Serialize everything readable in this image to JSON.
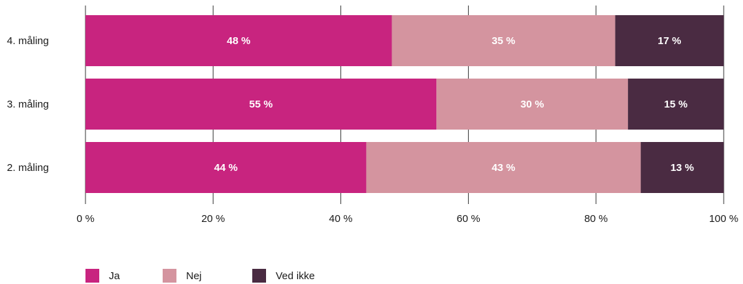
{
  "chart_data": {
    "type": "bar",
    "orientation": "horizontal",
    "stacked": true,
    "categories": [
      "4. måling",
      "3. måling",
      "2. måling"
    ],
    "series": [
      {
        "name": "Ja",
        "color": "#c8247f",
        "values": [
          48,
          55,
          44
        ],
        "labels": [
          "48 %",
          "55 %",
          "44 %"
        ]
      },
      {
        "name": "Nej",
        "color": "#d4949f",
        "values": [
          35,
          30,
          43
        ],
        "labels": [
          "35 %",
          "30 %",
          "43 %"
        ]
      },
      {
        "name": "Ved ikke",
        "color": "#4a2b42",
        "values": [
          17,
          15,
          13
        ],
        "labels": [
          "17 %",
          "15 %",
          "13 %"
        ]
      }
    ],
    "xlim": [
      0,
      100
    ],
    "xticks": [
      0,
      20,
      40,
      60,
      80,
      100
    ],
    "xtick_labels": [
      "0 %",
      "20 %",
      "40 %",
      "60 %",
      "80 %",
      "100 %"
    ],
    "grid": true,
    "legend_position": "bottom-left",
    "title": "",
    "xlabel": "",
    "ylabel": ""
  }
}
